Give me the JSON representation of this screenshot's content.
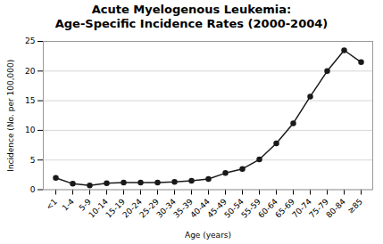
{
  "chart_data": {
    "type": "line",
    "title": "Acute Myelogenous Leukemia:\nAge-Specific Incidence Rates (2000-2004)",
    "xlabel": "Age (years)",
    "ylabel": "Incidence (No. per 100,000)",
    "categories": [
      "<1",
      "1-4",
      "5-9",
      "10-14",
      "15-19",
      "20-24",
      "25-29",
      "30-34",
      "35-39",
      "40-44",
      "45-49",
      "50-54",
      "55-59",
      "60-64",
      "65-69",
      "70-74",
      "75-79",
      "80-84",
      "≥85"
    ],
    "values": [
      2.0,
      1.0,
      0.7,
      1.1,
      1.2,
      1.2,
      1.2,
      1.3,
      1.5,
      1.8,
      2.8,
      3.5,
      5.1,
      7.8,
      11.2,
      15.7,
      20.0,
      23.5,
      21.5
    ],
    "color": "#1a1a1a",
    "marker": "circle",
    "ylim": [
      0,
      25
    ],
    "yticks": [
      0,
      5,
      10,
      15,
      20,
      25
    ],
    "grid": true
  }
}
